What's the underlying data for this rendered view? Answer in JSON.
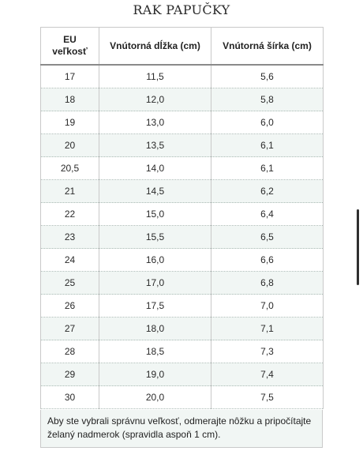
{
  "title": "RAK PAPUČKY",
  "table": {
    "headers": [
      "EU\nveľkosť",
      "Vnútorná dĺžka (cm)",
      "Vnútorná šírka (cm)"
    ],
    "rows": [
      [
        "17",
        "11,5",
        "5,6"
      ],
      [
        "18",
        "12,0",
        "5,8"
      ],
      [
        "19",
        "13,0",
        "6,0"
      ],
      [
        "20",
        "13,5",
        "6,1"
      ],
      [
        "20,5",
        "14,0",
        "6,1"
      ],
      [
        "21",
        "14,5",
        "6,2"
      ],
      [
        "22",
        "15,0",
        "6,4"
      ],
      [
        "23",
        "15,5",
        "6,5"
      ],
      [
        "24",
        "16,0",
        "6,6"
      ],
      [
        "25",
        "17,0",
        "6,8"
      ],
      [
        "26",
        "17,5",
        "7,0"
      ],
      [
        "27",
        "18,0",
        "7,1"
      ],
      [
        "28",
        "18,5",
        "7,3"
      ],
      [
        "29",
        "19,0",
        "7,4"
      ],
      [
        "30",
        "20,0",
        "7,5"
      ]
    ]
  },
  "note": "Aby ste vybrali správnu veľkosť, odmerajte nôžku a pripočítajte želaný nadmerok (spravidla aspoň 1 cm)."
}
